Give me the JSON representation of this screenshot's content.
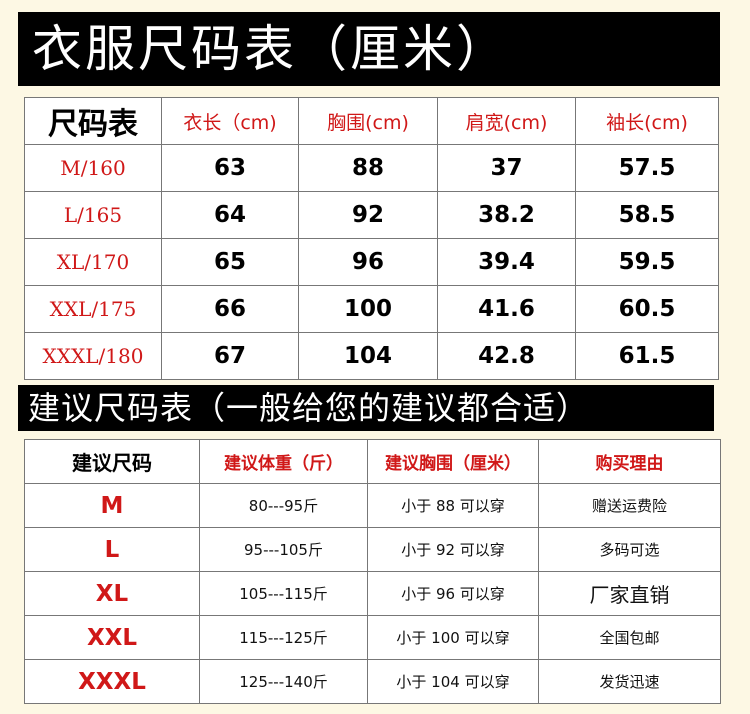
{
  "size_chart": {
    "banner": "衣服尺码表（厘米）",
    "corner": "尺码表",
    "headers": [
      "衣长（cm)",
      "胸围(cm)",
      "肩宽(cm)",
      "袖长(cm)"
    ],
    "rows": [
      {
        "size": "M/160",
        "length": "63",
        "chest": "88",
        "shoulder": "37",
        "sleeve": "57.5"
      },
      {
        "size": "L/165",
        "length": "64",
        "chest": "92",
        "shoulder": "38.2",
        "sleeve": "58.5"
      },
      {
        "size": "XL/170",
        "length": "65",
        "chest": "96",
        "shoulder": "39.4",
        "sleeve": "59.5"
      },
      {
        "size": "XXL/175",
        "length": "66",
        "chest": "100",
        "shoulder": "41.6",
        "sleeve": "60.5"
      },
      {
        "size": "XXXL/180",
        "length": "67",
        "chest": "104",
        "shoulder": "42.8",
        "sleeve": "61.5"
      }
    ]
  },
  "recommend_chart": {
    "banner": "建议尺码表（一般给您的建议都合适）",
    "corner": "建议尺码",
    "headers": [
      "建议体重（斤）",
      "建议胸围（厘米）",
      "购买理由"
    ],
    "rows": [
      {
        "size": "M",
        "weight": "80---95斤",
        "bust": "小于 88 可以穿",
        "reason": "赠送运费险"
      },
      {
        "size": "L",
        "weight": "95---105斤",
        "bust": "小于 92 可以穿",
        "reason": "多码可选"
      },
      {
        "size": "XL",
        "weight": "105---115斤",
        "bust": "小于 96 可以穿",
        "reason": "厂家直销"
      },
      {
        "size": "XXL",
        "weight": "115---125斤",
        "bust": "小于 100 可以穿",
        "reason": "全国包邮"
      },
      {
        "size": "XXXL",
        "weight": "125---140斤",
        "bust": "小于 104 可以穿",
        "reason": "发货迅速"
      }
    ]
  },
  "colors": {
    "accent": "#d01818",
    "banner_bg": "#000000",
    "page_bg": "#fdf8e4"
  }
}
